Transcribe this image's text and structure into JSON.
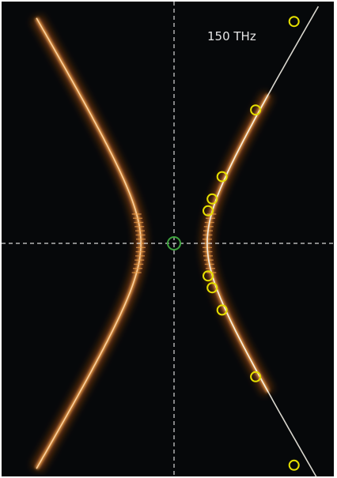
{
  "chart_data": {
    "type": "scatter",
    "label": "150 THz",
    "axes": {
      "x_range": [
        -1,
        1
      ],
      "y_range": [
        -1,
        1
      ],
      "crosshair_style": "dashed",
      "grid": false
    },
    "colors": {
      "background": "#06080a",
      "band_core": "#ffd9a8",
      "band_mid": "#f2a14a",
      "band_glow": "#c25a10",
      "fit_line": "#f2f0e6",
      "marker": "#e6e000",
      "origin_marker": "#3fa33f",
      "crosshair": "#d8d8d8"
    },
    "origin_marker": {
      "x": 0,
      "y": 0
    },
    "markers": [
      {
        "x": 0.843,
        "y": 0.955
      },
      {
        "x": 0.573,
        "y": 0.574
      },
      {
        "x": 0.337,
        "y": 0.287
      },
      {
        "x": 0.268,
        "y": 0.191
      },
      {
        "x": 0.239,
        "y": 0.14
      },
      {
        "x": 0.239,
        "y": -0.14
      },
      {
        "x": 0.268,
        "y": -0.191
      },
      {
        "x": 0.337,
        "y": -0.287
      },
      {
        "x": 0.573,
        "y": -0.574
      },
      {
        "x": 0.843,
        "y": -0.955
      }
    ]
  }
}
